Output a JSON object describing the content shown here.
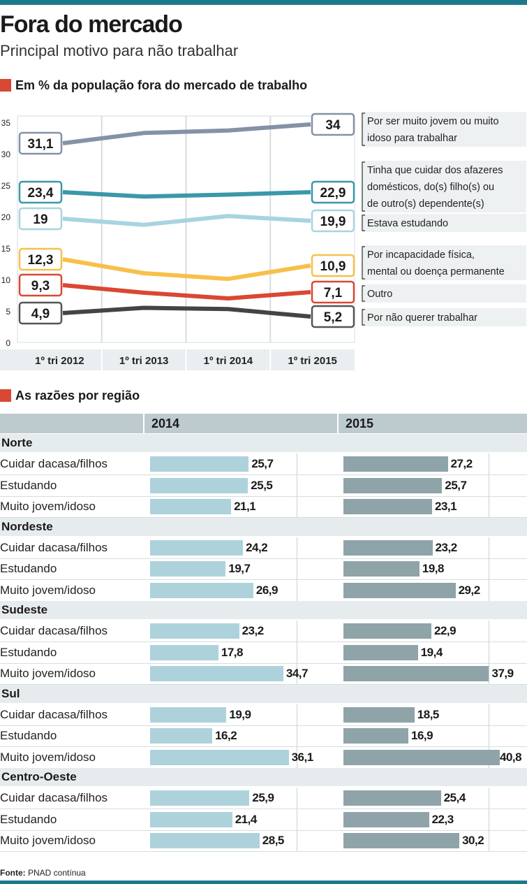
{
  "title": "Fora do mercado",
  "subtitle": "Principal motivo para não trabalhar",
  "section1": "Em % da população fora do mercado de trabalho",
  "section2": "As razões por região",
  "source_label": "Fonte:",
  "source_name": "PNAD contínua",
  "chart_data": [
    {
      "type": "line",
      "title": "Em % da população fora do mercado de trabalho",
      "categories": [
        "1º tri 2012",
        "1º tri 2013",
        "1º tri 2014",
        "1º tri 2015"
      ],
      "ylim": [
        0,
        35
      ],
      "yticks": [
        0,
        5,
        10,
        15,
        20,
        25,
        30,
        35
      ],
      "grid": true,
      "series": [
        {
          "name": "Por ser muito jovem ou muito idoso para trabalhar",
          "label_lines": [
            "Por ser muito jovem ou muito",
            "idoso para trabalhar"
          ],
          "values": [
            31.1,
            33.3,
            33.7,
            34
          ],
          "start_label": "31,1",
          "end_label": "34",
          "color": "#8492a6"
        },
        {
          "name": "Tinha que cuidar dos afazeres domésticos, do(s) filho(s) ou de outro(s) dependente(s)",
          "label_lines": [
            "Tinha que cuidar dos afazeres",
            "domésticos, do(s) filho(s) ou",
            "de outro(s) dependente(s)"
          ],
          "values": [
            23.4,
            23.2,
            23.5,
            22.9
          ],
          "start_label": "23,4",
          "end_label": "22,9",
          "color": "#3a98a8"
        },
        {
          "name": "Estava estudando",
          "label_lines": [
            "Estava estudando"
          ],
          "values": [
            19,
            18.7,
            20.1,
            19.9
          ],
          "start_label": "19",
          "end_label": "19,9",
          "color": "#a8d4e0"
        },
        {
          "name": "Por incapacidade física, mental ou doença permanente",
          "label_lines": [
            "Por incapacidade física,",
            "mental ou doença permanente"
          ],
          "values": [
            12.3,
            11,
            10.1,
            10.9
          ],
          "start_label": "12,3",
          "end_label": "10,9",
          "color": "#f7c04a"
        },
        {
          "name": "Outro",
          "label_lines": [
            "Outro"
          ],
          "values": [
            9.3,
            7.9,
            7,
            7.1
          ],
          "start_label": "9,3",
          "end_label": "7,1",
          "color": "#d94832"
        },
        {
          "name": "Por não querer trabalhar",
          "label_lines": [
            "Por não querer trabalhar"
          ],
          "values": [
            4.9,
            5.5,
            5.3,
            5.2
          ],
          "start_label": "4,9",
          "end_label": "5,2",
          "color": "#444444"
        }
      ]
    },
    {
      "type": "bar",
      "title": "As razões por região",
      "years": [
        "2014",
        "2015"
      ],
      "xlim": [
        0,
        41
      ],
      "regions": [
        {
          "name": "Norte",
          "rows": [
            {
              "label": "Cuidar dacasa/filhos",
              "v2014": 25.7,
              "t2014": "25,7",
              "v2015": 27.2,
              "t2015": "27,2"
            },
            {
              "label": "Estudando",
              "v2014": 25.5,
              "t2014": "25,5",
              "v2015": 25.7,
              "t2015": "25,7"
            },
            {
              "label": "Muito jovem/idoso",
              "v2014": 21.1,
              "t2014": "21,1",
              "v2015": 23.1,
              "t2015": "23,1"
            }
          ]
        },
        {
          "name": "Nordeste",
          "rows": [
            {
              "label": "Cuidar dacasa/filhos",
              "v2014": 24.2,
              "t2014": "24,2",
              "v2015": 23.2,
              "t2015": "23,2"
            },
            {
              "label": "Estudando",
              "v2014": 19.7,
              "t2014": "19,7",
              "v2015": 19.8,
              "t2015": "19,8"
            },
            {
              "label": "Muito jovem/idoso",
              "v2014": 26.9,
              "t2014": "26,9",
              "v2015": 29.2,
              "t2015": "29,2"
            }
          ]
        },
        {
          "name": "Sudeste",
          "rows": [
            {
              "label": "Cuidar dacasa/filhos",
              "v2014": 23.2,
              "t2014": "23,2",
              "v2015": 22.9,
              "t2015": "22,9"
            },
            {
              "label": "Estudando",
              "v2014": 17.8,
              "t2014": "17,8",
              "v2015": 19.4,
              "t2015": "19,4"
            },
            {
              "label": "Muito jovem/idoso",
              "v2014": 34.7,
              "t2014": "34,7",
              "v2015": 37.9,
              "t2015": "37,9"
            }
          ]
        },
        {
          "name": "Sul",
          "rows": [
            {
              "label": "Cuidar dacasa/filhos",
              "v2014": 19.9,
              "t2014": "19,9",
              "v2015": 18.5,
              "t2015": "18,5"
            },
            {
              "label": "Estudando",
              "v2014": 16.2,
              "t2014": "16,2",
              "v2015": 16.9,
              "t2015": "16,9"
            },
            {
              "label": "Muito jovem/idoso",
              "v2014": 36.1,
              "t2014": "36,1",
              "v2015": 40.8,
              "t2015": "40,8"
            }
          ]
        },
        {
          "name": "Centro-Oeste",
          "rows": [
            {
              "label": "Cuidar dacasa/filhos",
              "v2014": 25.9,
              "t2014": "25,9",
              "v2015": 25.4,
              "t2015": "25,4"
            },
            {
              "label": "Estudando",
              "v2014": 21.4,
              "t2014": "21,4",
              "v2015": 22.3,
              "t2015": "22,3"
            },
            {
              "label": "Muito jovem/idoso",
              "v2014": 28.5,
              "t2014": "28,5",
              "v2015": 30.2,
              "t2015": "30,2"
            }
          ]
        }
      ]
    }
  ]
}
